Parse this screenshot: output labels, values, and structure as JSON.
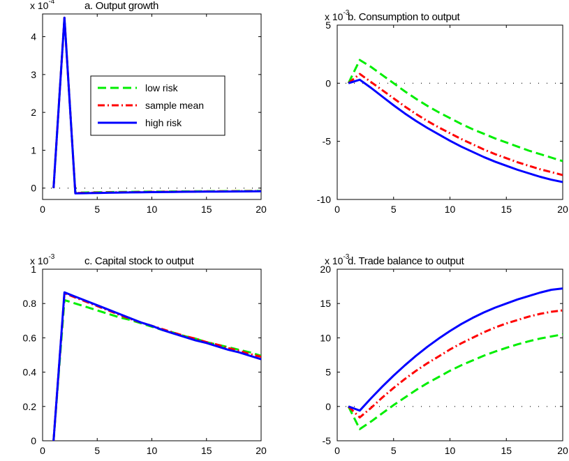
{
  "figure": {
    "panels_layout": "2x2 grid",
    "background": "#ffffff",
    "axes_color": "#000000"
  },
  "legend": {
    "panel": 0,
    "placement": "upper-middle of panel a",
    "entries": [
      {
        "label": "low risk",
        "color": "#00ee00",
        "dash": "dashed"
      },
      {
        "label": "sample mean",
        "color": "#ff0000",
        "dash": "dash-dot"
      },
      {
        "label": "high risk",
        "color": "#0000ff",
        "dash": "solid"
      }
    ]
  },
  "chart_data": [
    {
      "type": "line",
      "title": "a. Output growth",
      "xlabel": "",
      "ylabel": "",
      "exponent": {
        "base": "x 10",
        "power": "-4"
      },
      "xlim": [
        0,
        20
      ],
      "ylim": [
        -0.3,
        4.6
      ],
      "xticks": [
        0,
        5,
        10,
        15,
        20
      ],
      "yticks": [
        0,
        1,
        2,
        3,
        4
      ],
      "zero_line": true,
      "x": [
        1,
        2,
        3,
        4,
        5,
        6,
        7,
        8,
        9,
        10,
        11,
        12,
        13,
        14,
        15,
        16,
        17,
        18,
        19,
        20
      ],
      "series": [
        {
          "name": "low risk",
          "color": "#00ee00",
          "dash": "dashed",
          "values": [
            0,
            4.5,
            -0.12,
            -0.115,
            -0.11,
            -0.106,
            -0.102,
            -0.099,
            -0.096,
            -0.093,
            -0.091,
            -0.089,
            -0.087,
            -0.085,
            -0.083,
            -0.081,
            -0.079,
            -0.077,
            -0.075,
            -0.073
          ]
        },
        {
          "name": "sample mean",
          "color": "#ff0000",
          "dash": "dash-dot",
          "values": [
            0,
            4.5,
            -0.13,
            -0.125,
            -0.12,
            -0.115,
            -0.111,
            -0.107,
            -0.104,
            -0.101,
            -0.098,
            -0.096,
            -0.093,
            -0.091,
            -0.089,
            -0.087,
            -0.085,
            -0.083,
            -0.081,
            -0.079
          ]
        },
        {
          "name": "high risk",
          "color": "#0000ff",
          "dash": "solid",
          "values": [
            0,
            4.5,
            -0.14,
            -0.134,
            -0.128,
            -0.123,
            -0.118,
            -0.114,
            -0.11,
            -0.107,
            -0.104,
            -0.101,
            -0.098,
            -0.096,
            -0.094,
            -0.092,
            -0.09,
            -0.088,
            -0.086,
            -0.084
          ]
        }
      ]
    },
    {
      "type": "line",
      "title": "b. Consumption to output",
      "xlabel": "",
      "ylabel": "",
      "exponent": {
        "base": "x 10",
        "power": "-3"
      },
      "xlim": [
        0,
        20
      ],
      "ylim": [
        -10,
        5
      ],
      "xticks": [
        0,
        5,
        10,
        15,
        20
      ],
      "yticks": [
        -10,
        -5,
        0,
        5
      ],
      "zero_line": true,
      "x": [
        1,
        2,
        3,
        4,
        5,
        6,
        7,
        8,
        9,
        10,
        11,
        12,
        13,
        14,
        15,
        16,
        17,
        18,
        19,
        20
      ],
      "series": [
        {
          "name": "low risk",
          "color": "#00ee00",
          "dash": "dashed",
          "values": [
            0,
            2.0,
            1.4,
            0.7,
            0.0,
            -0.7,
            -1.35,
            -1.95,
            -2.5,
            -3.0,
            -3.5,
            -3.95,
            -4.35,
            -4.75,
            -5.1,
            -5.45,
            -5.8,
            -6.1,
            -6.4,
            -6.7
          ]
        },
        {
          "name": "sample mean",
          "color": "#ff0000",
          "dash": "dash-dot",
          "values": [
            0,
            0.8,
            0.1,
            -0.6,
            -1.3,
            -2.0,
            -2.65,
            -3.25,
            -3.8,
            -4.3,
            -4.8,
            -5.25,
            -5.7,
            -6.1,
            -6.45,
            -6.8,
            -7.1,
            -7.4,
            -7.65,
            -7.9
          ]
        },
        {
          "name": "high risk",
          "color": "#0000ff",
          "dash": "solid",
          "values": [
            0,
            0.3,
            -0.4,
            -1.15,
            -1.9,
            -2.6,
            -3.25,
            -3.85,
            -4.4,
            -4.95,
            -5.45,
            -5.9,
            -6.35,
            -6.75,
            -7.1,
            -7.45,
            -7.75,
            -8.05,
            -8.3,
            -8.5
          ]
        }
      ]
    },
    {
      "type": "line",
      "title": "c. Capital stock to output",
      "xlabel": "",
      "ylabel": "",
      "exponent": {
        "base": "x 10",
        "power": "-3"
      },
      "xlim": [
        0,
        20
      ],
      "ylim": [
        0,
        1
      ],
      "xticks": [
        0,
        5,
        10,
        15,
        20
      ],
      "yticks": [
        0,
        0.2,
        0.4,
        0.6,
        0.8,
        1
      ],
      "zero_line": false,
      "x": [
        1,
        2,
        3,
        4,
        5,
        6,
        7,
        8,
        9,
        10,
        11,
        12,
        13,
        14,
        15,
        16,
        17,
        18,
        19,
        20
      ],
      "series": [
        {
          "name": "low risk",
          "color": "#00ee00",
          "dash": "dashed",
          "values": [
            0,
            0.82,
            0.8,
            0.78,
            0.76,
            0.74,
            0.72,
            0.705,
            0.685,
            0.665,
            0.645,
            0.63,
            0.61,
            0.595,
            0.575,
            0.56,
            0.545,
            0.53,
            0.515,
            0.495
          ]
        },
        {
          "name": "sample mean",
          "color": "#ff0000",
          "dash": "dash-dot",
          "values": [
            0,
            0.86,
            0.835,
            0.81,
            0.785,
            0.76,
            0.735,
            0.71,
            0.69,
            0.67,
            0.65,
            0.63,
            0.61,
            0.595,
            0.575,
            0.56,
            0.54,
            0.525,
            0.505,
            0.49
          ]
        },
        {
          "name": "high risk",
          "color": "#0000ff",
          "dash": "solid",
          "values": [
            0,
            0.865,
            0.84,
            0.815,
            0.79,
            0.765,
            0.74,
            0.715,
            0.69,
            0.67,
            0.645,
            0.625,
            0.605,
            0.585,
            0.57,
            0.55,
            0.53,
            0.515,
            0.495,
            0.475
          ]
        }
      ]
    },
    {
      "type": "line",
      "title": "d. Trade balance to output",
      "xlabel": "",
      "ylabel": "",
      "exponent": {
        "base": "x 10",
        "power": "-3"
      },
      "xlim": [
        0,
        20
      ],
      "ylim": [
        -5,
        20
      ],
      "xticks": [
        0,
        5,
        10,
        15,
        20
      ],
      "yticks": [
        -5,
        0,
        5,
        10,
        15,
        20
      ],
      "zero_line": true,
      "x": [
        1,
        2,
        3,
        4,
        5,
        6,
        7,
        8,
        9,
        10,
        11,
        12,
        13,
        14,
        15,
        16,
        17,
        18,
        19,
        20
      ],
      "series": [
        {
          "name": "low risk",
          "color": "#00ee00",
          "dash": "dashed",
          "values": [
            0,
            -3.3,
            -2.2,
            -1.0,
            0.2,
            1.3,
            2.4,
            3.4,
            4.3,
            5.2,
            6.0,
            6.7,
            7.4,
            8.0,
            8.55,
            9.05,
            9.5,
            9.9,
            10.2,
            10.5
          ]
        },
        {
          "name": "sample mean",
          "color": "#ff0000",
          "dash": "dash-dot",
          "values": [
            0,
            -1.6,
            -0.2,
            1.3,
            2.7,
            4.0,
            5.2,
            6.3,
            7.3,
            8.3,
            9.2,
            10.0,
            10.8,
            11.5,
            12.1,
            12.6,
            13.1,
            13.5,
            13.8,
            14.0
          ]
        },
        {
          "name": "high risk",
          "color": "#0000ff",
          "dash": "solid",
          "values": [
            0,
            -0.6,
            1.2,
            2.9,
            4.5,
            6.0,
            7.4,
            8.7,
            9.9,
            11.0,
            12.0,
            12.9,
            13.7,
            14.4,
            15.0,
            15.6,
            16.1,
            16.6,
            17.0,
            17.2
          ]
        }
      ]
    }
  ]
}
